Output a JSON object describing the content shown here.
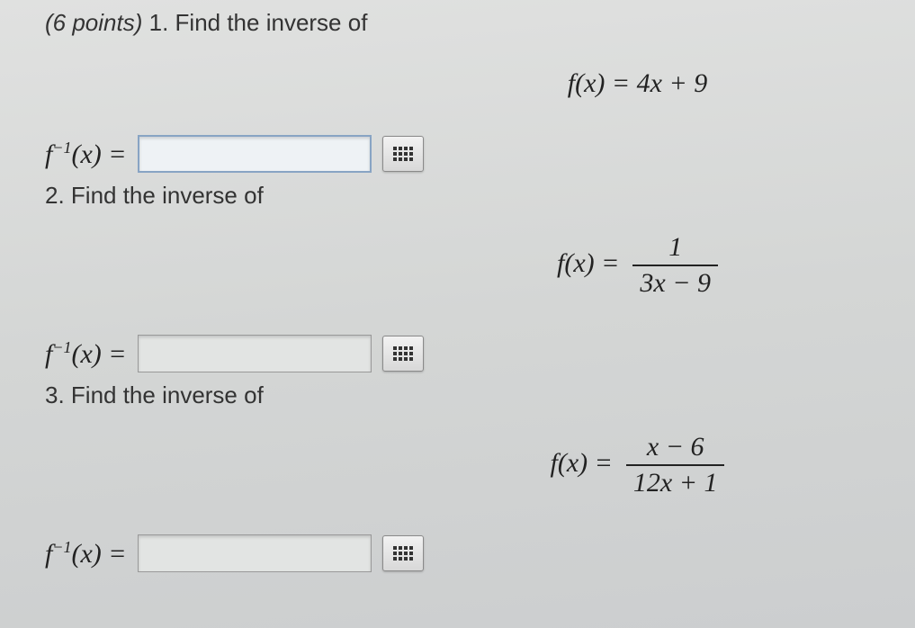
{
  "header": {
    "points": "(6 points)",
    "q1_label": "1. Find the inverse of"
  },
  "q1": {
    "equation": "f(x) = 4x + 9",
    "answer_label_pre": "f",
    "answer_label_sup": "−1",
    "answer_label_post": "(x) =",
    "input_value": "",
    "next_prompt": "2. Find the inverse of"
  },
  "q2": {
    "eq_left": "f(x) =",
    "eq_num": "1",
    "eq_den": "3x − 9",
    "answer_label_pre": "f",
    "answer_label_sup": "−1",
    "answer_label_post": "(x) =",
    "input_value": "",
    "next_prompt": "3. Find the inverse of"
  },
  "q3": {
    "eq_left": "f(x) =",
    "eq_num": "x − 6",
    "eq_den": "12x + 1",
    "answer_label_pre": "f",
    "answer_label_sup": "−1",
    "answer_label_post": "(x) =",
    "input_value": ""
  },
  "colors": {
    "text": "#222222",
    "input_border_active": "#88a4c4",
    "input_border": "#999999",
    "background": "#d8dad9"
  }
}
